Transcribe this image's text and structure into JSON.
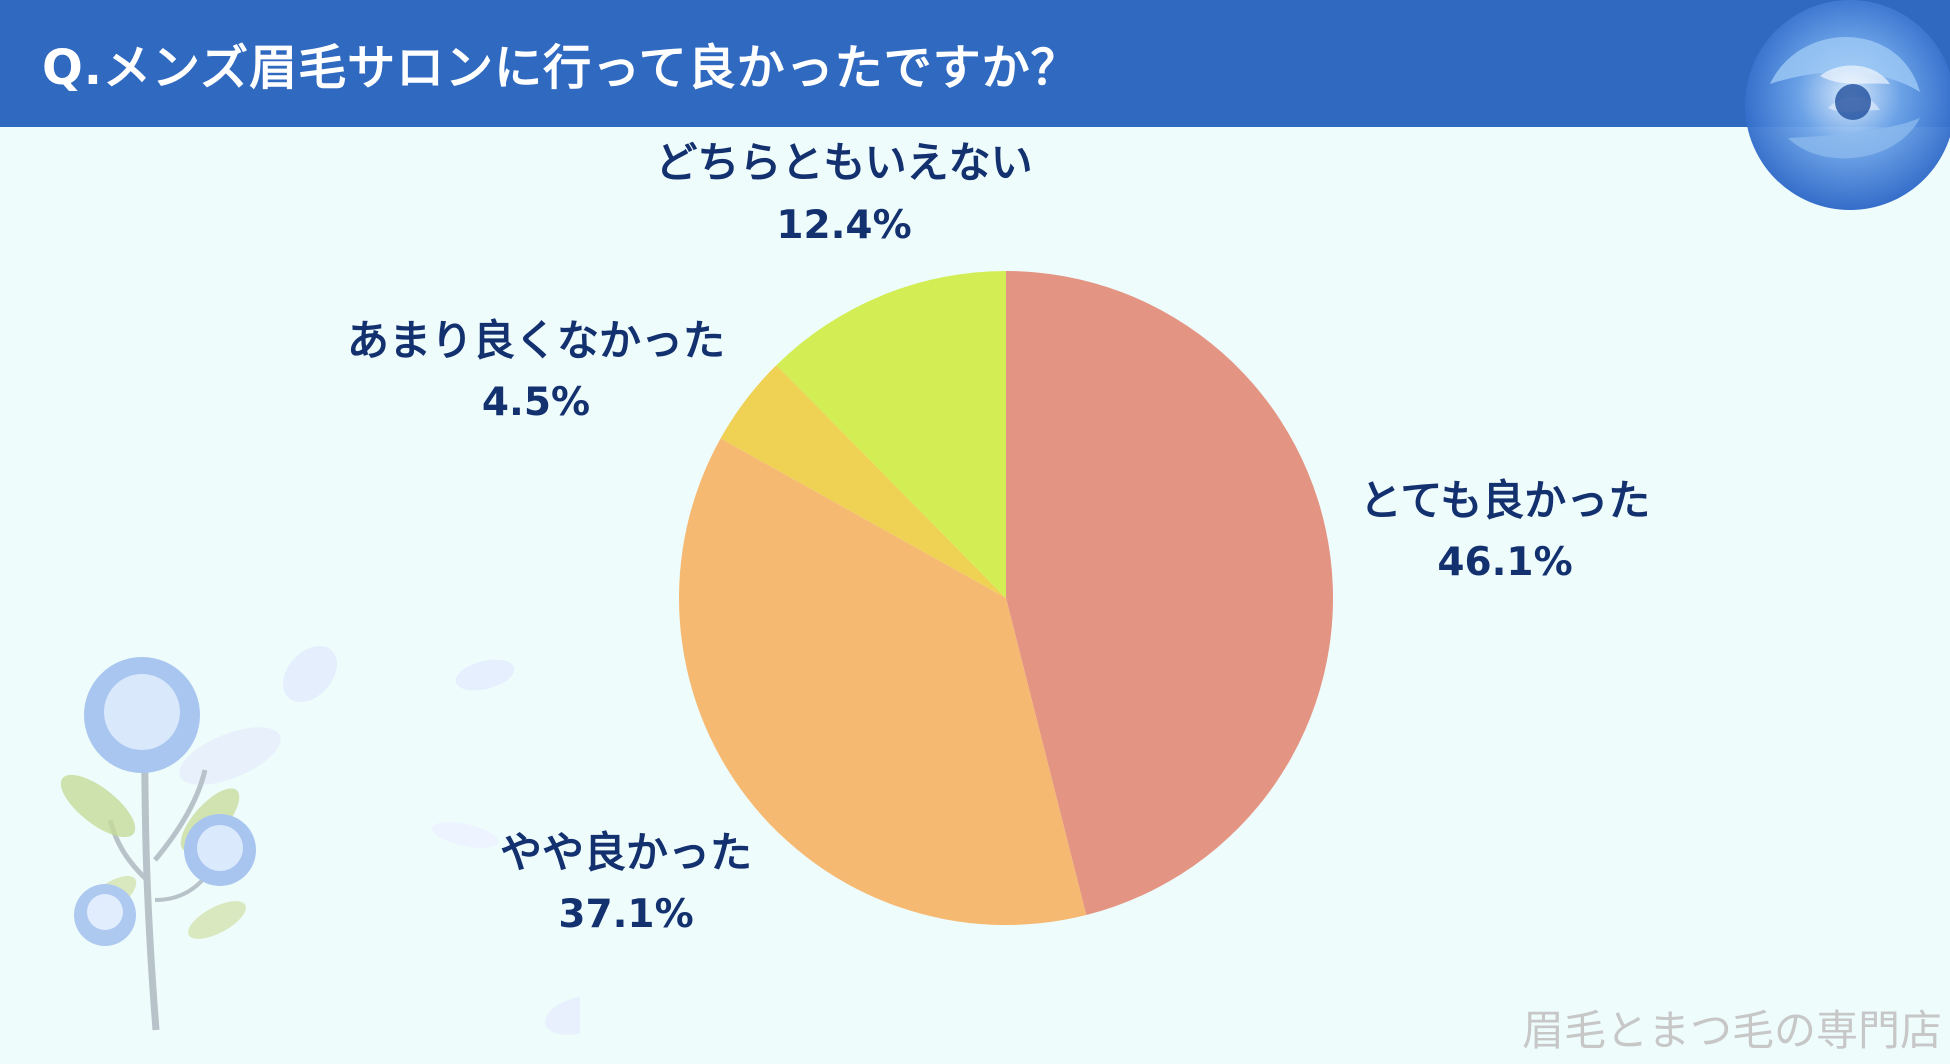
{
  "header": {
    "title": "Q.メンズ眉毛サロンに行って良かったですか？"
  },
  "chart_data": {
    "type": "pie",
    "title": "Q.メンズ眉毛サロンに行って良かったですか？",
    "slices": [
      {
        "label": "とても良かった",
        "value": 46.1,
        "display": "46.1%",
        "color": "#e49482"
      },
      {
        "label": "やや良かった",
        "value": 37.1,
        "display": "37.1%",
        "color": "#f5b972"
      },
      {
        "label": "あまり良くなかった",
        "value": 4.5,
        "display": "4.5%",
        "color": "#efd154"
      },
      {
        "label": "どちらともいえない",
        "value": 12.4,
        "display": "12.4%",
        "color": "#d2ee54"
      }
    ]
  },
  "colors": {
    "header_bg": "#2f69c0",
    "page_bg": "#eefcfc",
    "label_text": "#14316f"
  },
  "footer": {
    "watermark": "眉毛とまつ毛の専門店"
  }
}
